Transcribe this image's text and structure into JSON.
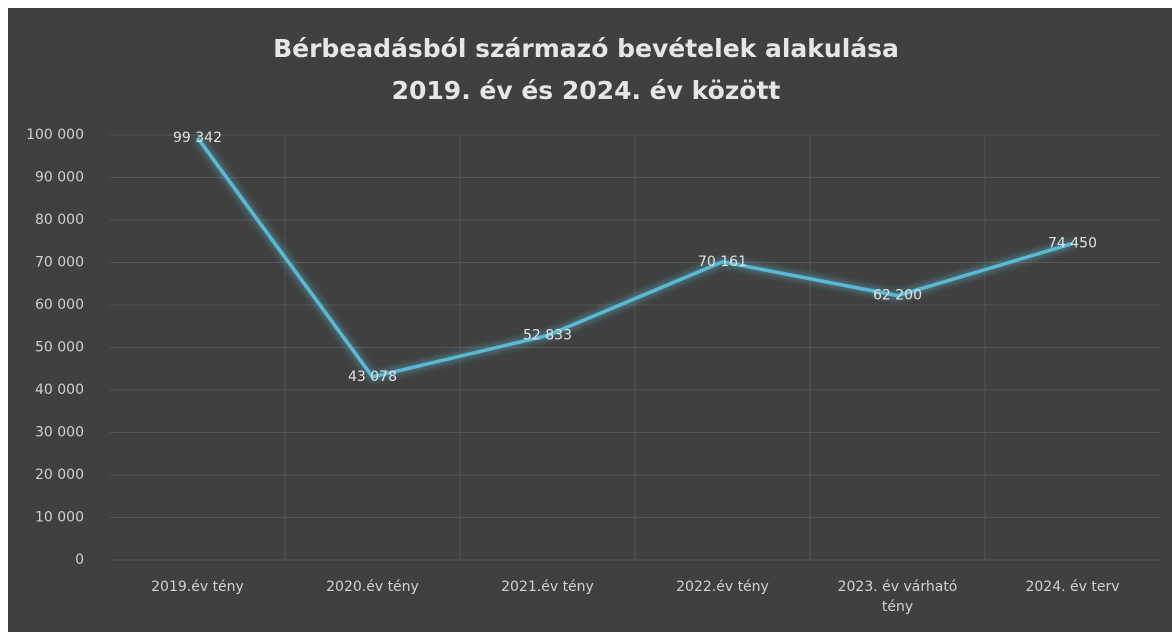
{
  "chart_data": {
    "type": "line",
    "title": "Bérbeadásból származó bevételek alakulása",
    "subtitle": "2019. év és 2024. év között",
    "categories": [
      "2019.év tény",
      "2020.év tény",
      "2021.év tény",
      "2022.év tény",
      "2023. év várható tény",
      "2024. év terv"
    ],
    "series": [
      {
        "color": "#5ab9d3",
        "values": [
          99342,
          43078,
          52833,
          70161,
          62200,
          74450
        ],
        "value_labels": [
          "99 342",
          "43 078",
          "52 833",
          "70 161",
          "62 200",
          "74 450"
        ]
      }
    ],
    "ylim": [
      0,
      100000
    ],
    "yticks": [
      0,
      {
        "value": 10000,
        "label": "10 000"
      },
      {
        "value": 20000,
        "label": "20 000"
      },
      {
        "value": 30000,
        "label": "30 000"
      },
      {
        "value": 40000,
        "label": "40 000"
      },
      {
        "value": 50000,
        "label": "50 000"
      },
      {
        "value": 60000,
        "label": "60 000"
      },
      {
        "value": 70000,
        "label": "70 000"
      },
      {
        "value": 80000,
        "label": "80 000"
      },
      {
        "value": 90000,
        "label": "90 000"
      },
      {
        "value": 100000,
        "label": "100 000"
      }
    ],
    "grid": true
  }
}
